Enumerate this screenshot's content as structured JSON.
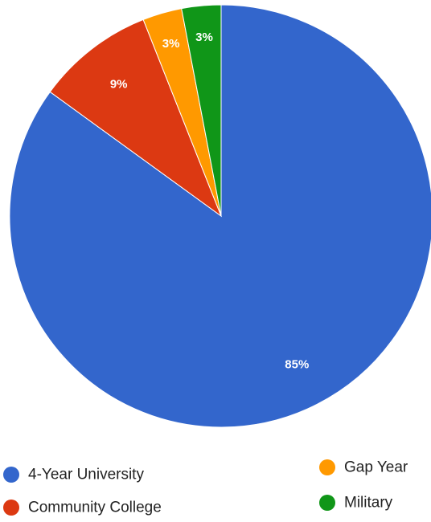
{
  "chart_data": {
    "type": "pie",
    "categories": [
      "4-Year University",
      "Community College",
      "Gap Year",
      "Military"
    ],
    "values": [
      85,
      9,
      3,
      3
    ],
    "labels": [
      "85%",
      "9%",
      "3%",
      "3%"
    ],
    "colors": [
      "#3366cc",
      "#dc3912",
      "#ff9900",
      "#109618"
    ],
    "legend": "bottom",
    "start": "top, clockwise"
  }
}
